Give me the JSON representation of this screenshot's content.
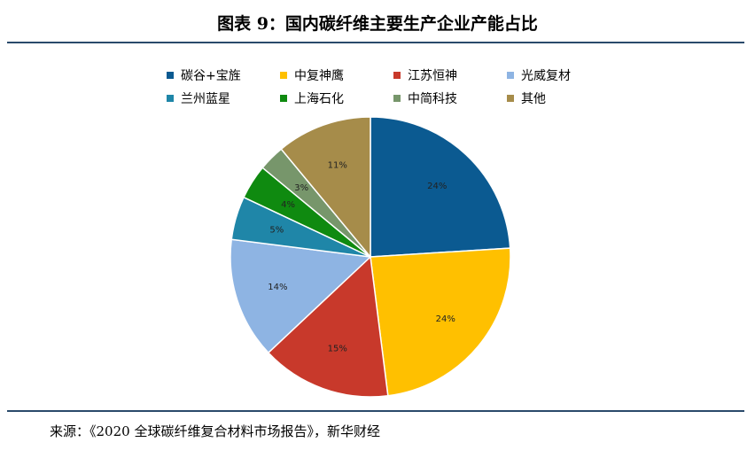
{
  "figure": {
    "title": "图表 9：国内碳纤维主要生产企业产能占比",
    "source": "来源：《2020 全球碳纤维复合材料市场报告》，新华财经"
  },
  "chart_data": {
    "type": "pie",
    "title": "",
    "legend_position": "top",
    "slices": [
      {
        "name": "碳谷+宝旌",
        "value": 24,
        "label": "24%",
        "color": "#0b5a91"
      },
      {
        "name": "中复神鹰",
        "value": 24,
        "label": "24%",
        "color": "#ffc000"
      },
      {
        "name": "江苏恒神",
        "value": 15,
        "label": "15%",
        "color": "#c8392b"
      },
      {
        "name": "光威复材",
        "value": 14,
        "label": "14%",
        "color": "#8eb4e3"
      },
      {
        "name": "兰州蓝星",
        "value": 5,
        "label": "5%",
        "color": "#1f86a8"
      },
      {
        "name": "上海石化",
        "value": 4,
        "label": "4%",
        "color": "#0f8a10"
      },
      {
        "name": "中简科技",
        "value": 3,
        "label": "3%",
        "color": "#77966b"
      },
      {
        "name": "其他",
        "value": 11,
        "label": "11%",
        "color": "#a68c4a"
      }
    ]
  }
}
